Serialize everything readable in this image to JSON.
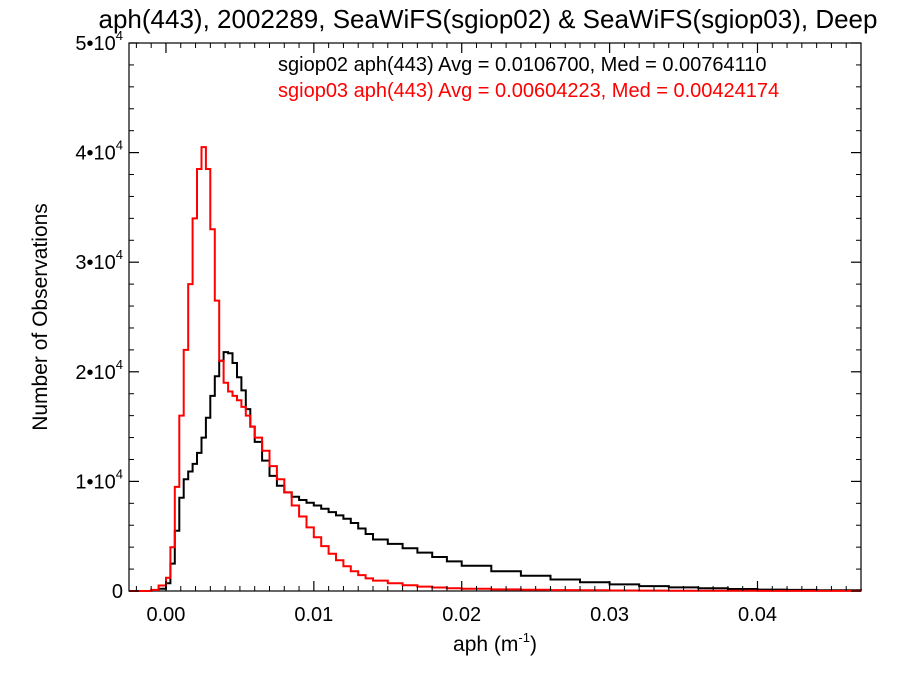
{
  "chart_data": {
    "type": "line",
    "title": "aph(443), 2002289, SeaWiFS(sgiop02) & SeaWiFS(sgiop03), Deep",
    "xlabel": "aph (m",
    "xlabel_sup": "-1",
    "xlabel_close": ")",
    "ylabel": "Number of Observations",
    "xlim": [
      -0.0025,
      0.047
    ],
    "ylim": [
      0,
      50000
    ],
    "xticks": [
      {
        "value": 0.0,
        "label": "0.00"
      },
      {
        "value": 0.01,
        "label": "0.01"
      },
      {
        "value": 0.02,
        "label": "0.02"
      },
      {
        "value": 0.03,
        "label": "0.03"
      },
      {
        "value": 0.04,
        "label": "0.04"
      }
    ],
    "yticks": [
      {
        "value": 0,
        "label": "0",
        "sup": ""
      },
      {
        "value": 10000,
        "label": "1•10",
        "sup": "4"
      },
      {
        "value": 20000,
        "label": "2•10",
        "sup": "4"
      },
      {
        "value": 30000,
        "label": "3•10",
        "sup": "4"
      },
      {
        "value": 40000,
        "label": "4•10",
        "sup": "4"
      },
      {
        "value": 50000,
        "label": "5•10",
        "sup": "4"
      }
    ],
    "grid": false,
    "legend_position": "top-right",
    "series": [
      {
        "name": "sgiop02 aph(443) Avg = 0.0106700, Med = 0.00764110",
        "color": "#000000",
        "x": [
          -0.0025,
          -0.002,
          -0.0015,
          -0.001,
          -0.0005,
          0.0,
          0.0003,
          0.0006,
          0.0009,
          0.0012,
          0.0015,
          0.0018,
          0.0021,
          0.0024,
          0.0027,
          0.003,
          0.0033,
          0.0036,
          0.0039,
          0.0042,
          0.0045,
          0.0048,
          0.0051,
          0.0054,
          0.0057,
          0.006,
          0.0065,
          0.007,
          0.0075,
          0.008,
          0.0085,
          0.009,
          0.0095,
          0.01,
          0.0105,
          0.011,
          0.0115,
          0.012,
          0.0125,
          0.013,
          0.0135,
          0.014,
          0.015,
          0.016,
          0.017,
          0.018,
          0.019,
          0.02,
          0.022,
          0.024,
          0.026,
          0.028,
          0.03,
          0.032,
          0.034,
          0.036,
          0.038,
          0.04,
          0.042,
          0.044,
          0.047
        ],
        "y": [
          0,
          0,
          0,
          50,
          200,
          700,
          2500,
          5500,
          8500,
          10200,
          10900,
          11600,
          12600,
          14000,
          15800,
          17800,
          19600,
          21000,
          21800,
          21700,
          20800,
          19500,
          18300,
          16600,
          15000,
          13600,
          11900,
          10500,
          9600,
          9000,
          8600,
          8300,
          8050,
          7800,
          7500,
          7200,
          6900,
          6600,
          6200,
          5700,
          5200,
          4700,
          4300,
          3900,
          3500,
          3100,
          2700,
          2300,
          1800,
          1400,
          1050,
          800,
          600,
          450,
          330,
          250,
          180,
          130,
          100,
          70,
          50
        ]
      },
      {
        "name": "sgiop03 aph(443) Avg = 0.00604223, Med = 0.00424174",
        "color": "#ff0000",
        "x": [
          -0.0025,
          -0.002,
          -0.0015,
          -0.001,
          -0.0005,
          0.0,
          0.0003,
          0.0006,
          0.0009,
          0.0012,
          0.0015,
          0.0018,
          0.0021,
          0.0024,
          0.0027,
          0.003,
          0.0033,
          0.0036,
          0.0039,
          0.0042,
          0.0045,
          0.0048,
          0.0051,
          0.0054,
          0.0057,
          0.006,
          0.0065,
          0.007,
          0.0075,
          0.008,
          0.0085,
          0.009,
          0.0095,
          0.01,
          0.0105,
          0.011,
          0.0115,
          0.012,
          0.0125,
          0.013,
          0.0135,
          0.014,
          0.015,
          0.016,
          0.017,
          0.018,
          0.019,
          0.02,
          0.022,
          0.024,
          0.026,
          0.028,
          0.03,
          0.032,
          0.034,
          0.036,
          0.038,
          0.04,
          0.042,
          0.044,
          0.047
        ],
        "y": [
          0,
          0,
          0,
          100,
          500,
          1200,
          4000,
          9500,
          16000,
          22000,
          28000,
          34000,
          38500,
          40500,
          38500,
          33000,
          26500,
          21000,
          19000,
          18200,
          17800,
          17400,
          16800,
          16000,
          15000,
          14000,
          12800,
          11400,
          10200,
          9000,
          7800,
          6800,
          5800,
          4900,
          4100,
          3400,
          2800,
          2250,
          1800,
          1450,
          1150,
          950,
          700,
          520,
          400,
          320,
          250,
          200,
          150,
          110,
          80,
          60,
          45,
          35,
          25,
          20,
          15,
          10,
          8,
          5,
          3
        ]
      }
    ]
  }
}
